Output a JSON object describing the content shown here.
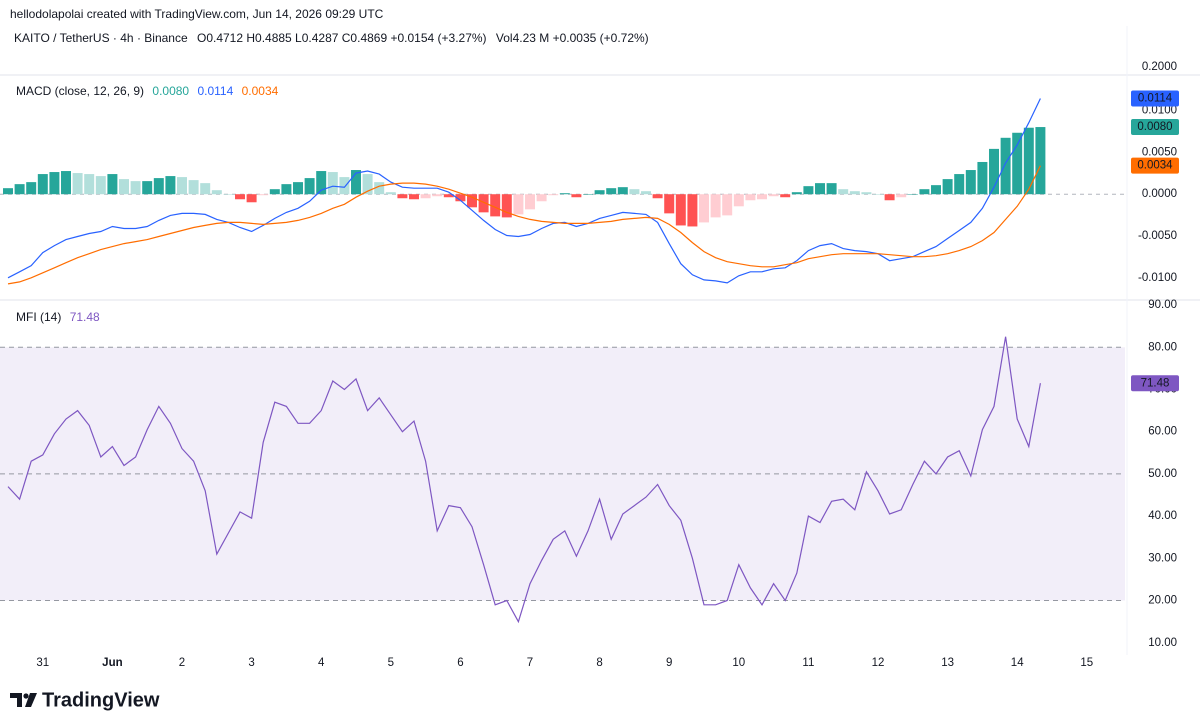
{
  "header": {
    "credit": "hellodolapolai created with TradingView.com, Jun 14, 2026 09:29 UTC",
    "symbol": "KAITO / TetherUS · 4h · Binance",
    "ohlc": "O0.4712 H0.4885 L0.4287 C0.4869 +0.0154 (+3.27%)",
    "volume": "Vol4.23 M +0.0035 (+0.72%)",
    "price_axis_label": "0.2000",
    "logo": "TradingView"
  },
  "chart_data": [
    {
      "type": "macd",
      "title": "MACD (close, 12, 26, 9)",
      "x": [
        -12,
        -8,
        -4,
        0,
        4,
        8,
        12,
        16,
        20,
        24,
        28,
        32,
        36,
        40,
        44,
        48,
        52,
        56,
        60,
        64,
        68,
        72,
        76,
        80,
        84,
        88,
        92,
        96,
        100,
        104,
        108,
        112,
        116,
        120,
        124,
        128,
        132,
        136,
        140,
        144,
        148,
        152,
        156,
        160,
        164,
        168,
        172,
        176,
        180,
        184,
        188,
        192,
        196,
        200,
        204,
        208,
        212,
        216,
        220,
        224,
        228,
        232,
        236,
        240,
        244,
        248,
        252,
        256,
        260,
        264,
        268,
        272,
        276,
        280,
        284,
        288,
        292,
        296,
        300,
        304,
        308,
        312,
        316,
        320,
        324,
        328,
        332,
        336,
        340,
        344
      ],
      "xlim": [
        -14.76,
        373.17
      ],
      "ylim": [
        -0.0126,
        0.0142
      ],
      "yticks": [
        {
          "value": 0.01,
          "label": "0.0100"
        },
        {
          "value": 0.005,
          "label": "0.0050"
        },
        {
          "value": 0,
          "label": "0.0000"
        },
        {
          "value": -0.005,
          "label": "-0.0050"
        },
        {
          "value": -0.01,
          "label": "-0.0100"
        }
      ],
      "zero_line": true,
      "series": [
        {
          "kind": "histogram",
          "colors": {
            "grow_above": "#26a69a",
            "fall_above": "#b2dfdb",
            "grow_below": "#ffcdd2",
            "fall_below": "#ff5252"
          },
          "values": [
            0.00072,
            0.0012,
            0.00144,
            0.0024,
            0.00264,
            0.00276,
            0.00252,
            0.0024,
            0.00216,
            0.0024,
            0.0018,
            0.00156,
            0.00156,
            0.00192,
            0.00216,
            0.00204,
            0.00168,
            0.00132,
            0.00048,
            0,
            -0.0006,
            -0.00096,
            -0.00012,
            0.0006,
            0.0012,
            0.00144,
            0.00192,
            0.00276,
            0.00264,
            0.00204,
            0.00288,
            0.0024,
            0.00144,
            0.00024,
            -0.00048,
            -0.0006,
            -0.00048,
            -0.00024,
            -0.00036,
            -0.00084,
            -0.00156,
            -0.00216,
            -0.00264,
            -0.00276,
            -0.0024,
            -0.0018,
            -0.00084,
            -0.00012,
            0.00012,
            -0.00036,
            0,
            0.00048,
            0.00072,
            0.00084,
            0.0006,
            0.00036,
            -0.00048,
            -0.00228,
            -0.00372,
            -0.00384,
            -0.00336,
            -0.00276,
            -0.00252,
            -0.00144,
            -0.00072,
            -0.0006,
            -0.00024,
            -0.00036,
            0.00024,
            0.00096,
            0.00132,
            0.00132,
            0.0006,
            0.00036,
            0.00024,
            0,
            -0.00072,
            -0.00036,
            0,
            0.0006,
            0.00108,
            0.0018,
            0.0024,
            0.00288,
            0.00384,
            0.0054,
            0.00672,
            0.00732,
            0.00792,
            0.008
          ],
          "last_value_label": "0.0080"
        },
        {
          "kind": "line",
          "color": "#2962ff",
          "values": [
            -0.00996,
            -0.00924,
            -0.00852,
            -0.00696,
            -0.00612,
            -0.0054,
            -0.00504,
            -0.00468,
            -0.00444,
            -0.00384,
            -0.00408,
            -0.00408,
            -0.00384,
            -0.00312,
            -0.00252,
            -0.00228,
            -0.00228,
            -0.0024,
            -0.003,
            -0.00336,
            -0.00396,
            -0.00444,
            -0.00372,
            -0.00288,
            -0.00216,
            -0.00168,
            -0.00084,
            0.00048,
            0.00096,
            0.00084,
            0.00252,
            0.00276,
            0.0024,
            0.00144,
            0.00084,
            0.00072,
            0.00072,
            0.00072,
            0.00024,
            -0.00072,
            -0.00192,
            -0.00312,
            -0.0042,
            -0.00492,
            -0.00504,
            -0.0048,
            -0.00408,
            -0.00348,
            -0.00336,
            -0.00384,
            -0.00348,
            -0.00288,
            -0.00252,
            -0.00216,
            -0.00228,
            -0.0024,
            -0.00336,
            -0.00588,
            -0.00828,
            -0.0096,
            -0.0102,
            -0.01032,
            -0.01056,
            -0.00972,
            -0.00924,
            -0.00924,
            -0.00888,
            -0.00876,
            -0.00792,
            -0.00672,
            -0.00612,
            -0.00588,
            -0.00648,
            -0.00672,
            -0.00684,
            -0.00708,
            -0.00792,
            -0.00768,
            -0.00744,
            -0.00684,
            -0.00624,
            -0.00528,
            -0.00432,
            -0.00336,
            -0.00168,
            0.00084,
            0.00372,
            0.00588,
            0.00852,
            0.0114
          ],
          "last_value_label": "0.0114"
        },
        {
          "kind": "line",
          "color": "#ff6d00",
          "values": [
            -0.01068,
            -0.01044,
            -0.00996,
            -0.00936,
            -0.00876,
            -0.00816,
            -0.00756,
            -0.00708,
            -0.0066,
            -0.00624,
            -0.00588,
            -0.00564,
            -0.0054,
            -0.00504,
            -0.00468,
            -0.00432,
            -0.00396,
            -0.00372,
            -0.00348,
            -0.00336,
            -0.00336,
            -0.00348,
            -0.0036,
            -0.00348,
            -0.00336,
            -0.00312,
            -0.00276,
            -0.00228,
            -0.00168,
            -0.0012,
            -0.00036,
            0.00036,
            0.00096,
            0.0012,
            0.00132,
            0.00132,
            0.0012,
            0.00096,
            0.0006,
            0.00012,
            -0.00036,
            -0.00096,
            -0.00156,
            -0.00216,
            -0.00264,
            -0.003,
            -0.00324,
            -0.00336,
            -0.00348,
            -0.00348,
            -0.00348,
            -0.00336,
            -0.00324,
            -0.003,
            -0.00288,
            -0.00276,
            -0.00288,
            -0.0036,
            -0.00456,
            -0.00576,
            -0.00684,
            -0.00756,
            -0.00804,
            -0.00828,
            -0.00852,
            -0.00864,
            -0.00864,
            -0.0084,
            -0.00816,
            -0.00768,
            -0.00744,
            -0.0072,
            -0.00708,
            -0.00708,
            -0.00708,
            -0.00708,
            -0.0072,
            -0.00732,
            -0.00744,
            -0.00744,
            -0.00732,
            -0.00708,
            -0.00672,
            -0.00624,
            -0.00552,
            -0.00456,
            -0.003,
            -0.00144,
            0.0006,
            0.0034
          ],
          "last_value_label": "0.0034"
        }
      ]
    },
    {
      "type": "mfi",
      "title": "MFI (14)",
      "x": [
        -12,
        -8,
        -4,
        0,
        4,
        8,
        12,
        16,
        20,
        24,
        28,
        32,
        36,
        40,
        44,
        48,
        52,
        56,
        60,
        64,
        68,
        72,
        76,
        80,
        84,
        88,
        92,
        96,
        100,
        104,
        108,
        112,
        116,
        120,
        124,
        128,
        132,
        136,
        140,
        144,
        148,
        152,
        156,
        160,
        164,
        168,
        172,
        176,
        180,
        184,
        188,
        192,
        196,
        200,
        204,
        208,
        212,
        216,
        220,
        224,
        228,
        232,
        236,
        240,
        244,
        248,
        252,
        256,
        260,
        264,
        268,
        272,
        276,
        280,
        284,
        288,
        292,
        296,
        300,
        304,
        308,
        312,
        316,
        320,
        324,
        328,
        332,
        336,
        340,
        344
      ],
      "xlim": [
        -14.76,
        373.17
      ],
      "xticks": [
        {
          "value": 0,
          "label": "31"
        },
        {
          "value": 24,
          "label": "Jun"
        },
        {
          "value": 48,
          "label": "2"
        },
        {
          "value": 72,
          "label": "3"
        },
        {
          "value": 96,
          "label": "4"
        },
        {
          "value": 120,
          "label": "5"
        },
        {
          "value": 144,
          "label": "6"
        },
        {
          "value": 168,
          "label": "7"
        },
        {
          "value": 192,
          "label": "8"
        },
        {
          "value": 216,
          "label": "9"
        },
        {
          "value": 240,
          "label": "10"
        },
        {
          "value": 264,
          "label": "11"
        },
        {
          "value": 288,
          "label": "12"
        },
        {
          "value": 312,
          "label": "13"
        },
        {
          "value": 336,
          "label": "14"
        },
        {
          "value": 360,
          "label": "15"
        }
      ],
      "ylim": [
        7.1,
        91.2
      ],
      "yticks": [
        {
          "value": 90,
          "label": "90.00"
        },
        {
          "value": 80,
          "label": "80.00"
        },
        {
          "value": 70,
          "label": "70.00"
        },
        {
          "value": 60,
          "label": "60.00"
        },
        {
          "value": 50,
          "label": "50.00"
        },
        {
          "value": 40,
          "label": "40.00"
        },
        {
          "value": 30,
          "label": "30.00"
        },
        {
          "value": 20,
          "label": "20.00"
        },
        {
          "value": 10,
          "label": "10.00"
        }
      ],
      "levels": [
        80,
        50,
        20
      ],
      "band_color": "#7e57c2",
      "series": [
        {
          "kind": "line",
          "color": "#7e57c2",
          "values": [
            47,
            44,
            53,
            54.5,
            59.5,
            63,
            65,
            61.5,
            54,
            56.5,
            52,
            54,
            60.5,
            66,
            62,
            56,
            53,
            46,
            31,
            36,
            41,
            39.5,
            57.5,
            67,
            66,
            62,
            62,
            65,
            72,
            70,
            72.5,
            65,
            68,
            64,
            60,
            62.5,
            53,
            36.5,
            42.5,
            42,
            37.5,
            28.5,
            19,
            20,
            15,
            24,
            29.5,
            34.5,
            36.5,
            30.5,
            36.5,
            44,
            34.5,
            40.5,
            42.5,
            44.5,
            47.5,
            42.5,
            39,
            30,
            19,
            19,
            20,
            28.5,
            23,
            19,
            24,
            20,
            26.5,
            40,
            38.5,
            43.5,
            44,
            41.5,
            50.5,
            46,
            40.5,
            41.5,
            47.5,
            53,
            50,
            54,
            55.5,
            49.5,
            60.5,
            66,
            82.5,
            63,
            56.5,
            71.48
          ],
          "last_value_label": "71.48"
        }
      ]
    }
  ]
}
